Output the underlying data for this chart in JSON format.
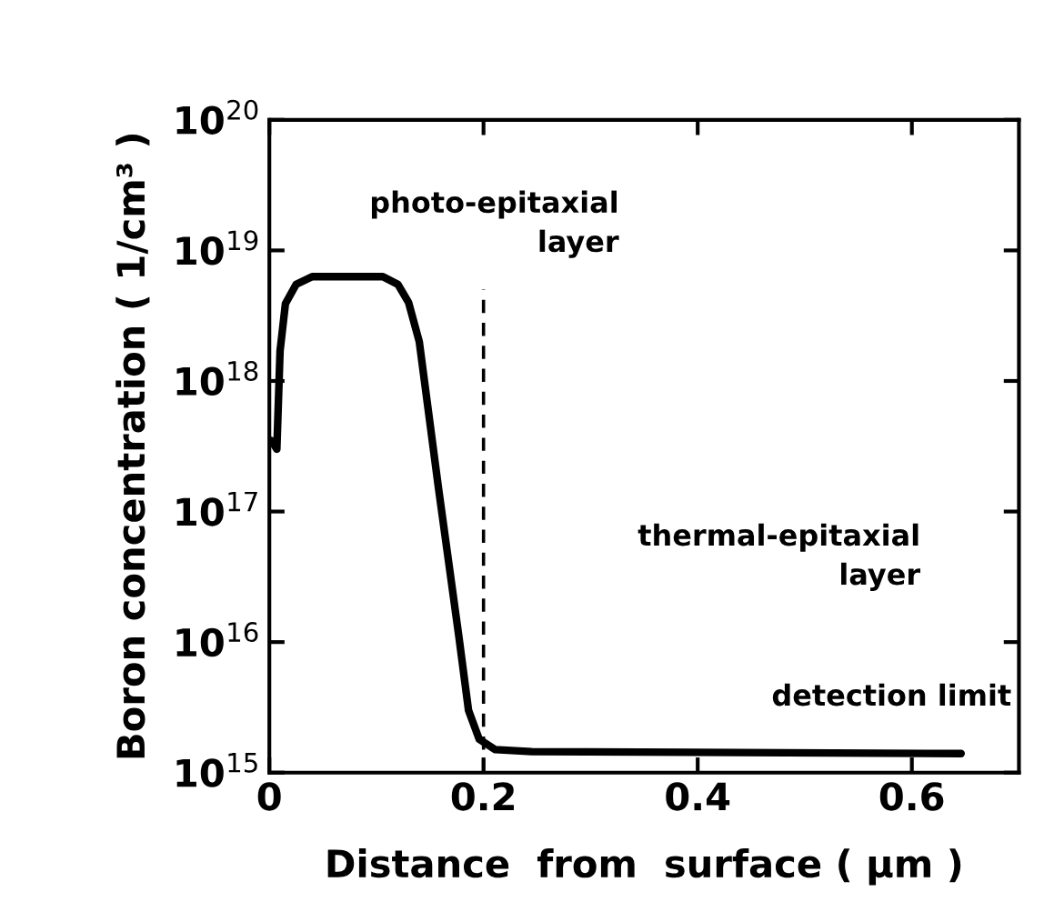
{
  "chart_data": {
    "type": "line",
    "xlabel": "Distance  from  surface ( μm )",
    "ylabel": "Boron concentration ( 1/cm³ )",
    "log": "y",
    "xlim": [
      0,
      0.7
    ],
    "xticks": [
      {
        "value": 0,
        "label": "0"
      },
      0.2,
      0.4,
      0.6
    ],
    "ylim": [
      1000000000000000.0,
      1e+20
    ],
    "yticks": [
      {
        "value": 1000000000000000.0,
        "label": "10$^{15}$"
      },
      {
        "value": 1e+16,
        "label": "10$^{16}$"
      },
      {
        "value": 1e+17,
        "label": "10$^{17}$"
      },
      {
        "value": 1e+18,
        "label": "10$^{18}$"
      },
      {
        "value": 1e+19,
        "label": "10$^{19}$"
      },
      {
        "value": 1e+20,
        "label": "10$^{20}$"
      }
    ],
    "grid": false,
    "legend": false,
    "series": [
      {
        "color": "#000000",
        "line_style": "solid",
        "x": [
          0.002,
          0.007,
          0.01,
          0.015,
          0.025,
          0.04,
          0.106,
          0.12,
          0.13,
          0.14,
          0.158,
          0.177,
          0.186,
          0.196,
          0.211,
          0.245,
          0.646
        ],
        "values": [
          3.5e+17,
          3e+17,
          1.7e+18,
          3.9e+18,
          5.5e+18,
          6.3e+18,
          6.3e+18,
          5.5e+18,
          4e+18,
          2e+18,
          1.5e+17,
          1.1e+16,
          3000000000000000.0,
          1800000000000000.0,
          1500000000000000.0,
          1450000000000000.0,
          1400000000000000.0
        ]
      }
    ],
    "ref_lines": [
      {
        "axis": "x",
        "value": 0.2,
        "color": "#000000",
        "line_style": "dashed"
      }
    ],
    "annotations": [
      "photo-epitaxial\nlayer",
      "thermal-epitaxial\nlayer",
      "detection limit"
    ]
  }
}
